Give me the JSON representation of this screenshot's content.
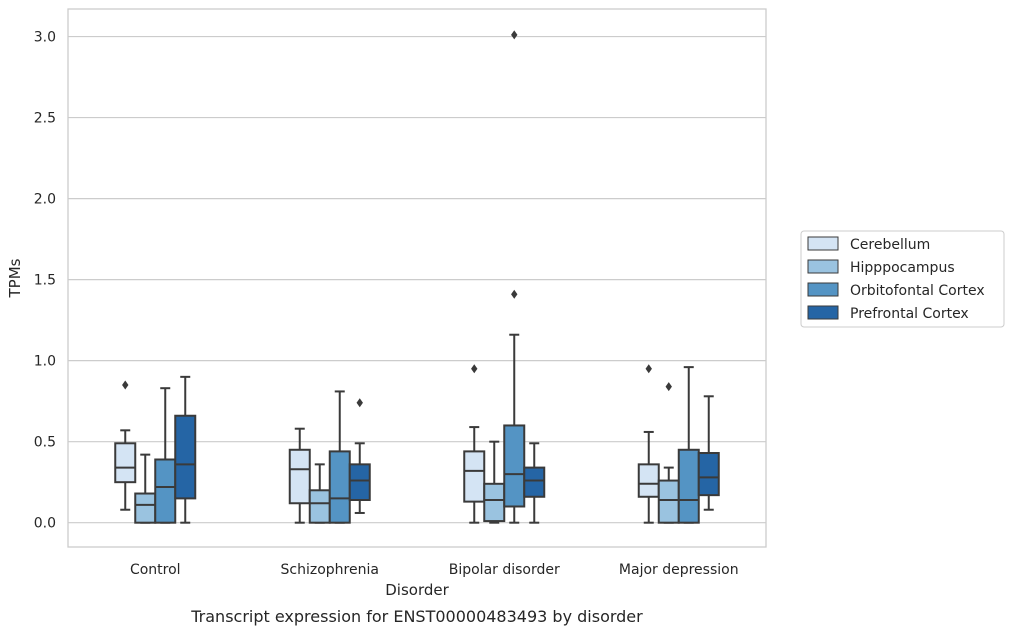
{
  "caption": "Transcript expression for ENST00000483493 by disorder",
  "chart_data": {
    "type": "boxplot",
    "xlabel": "Disorder",
    "ylabel": "TPMs",
    "ylim": [
      -0.15,
      3.17
    ],
    "yticks": [
      "0.0",
      "0.5",
      "1.0",
      "1.5",
      "2.0",
      "2.5",
      "3.0"
    ],
    "grid": "horizontal",
    "legend_position": "right",
    "categories": [
      "Control",
      "Schizophrenia",
      "Bipolar disorder",
      "Major depression"
    ],
    "series": [
      {
        "name": "Cerebellum",
        "color": "#d4e4f4",
        "boxes": [
          {
            "whislo": 0.08,
            "q1": 0.25,
            "med": 0.34,
            "q3": 0.49,
            "whishi": 0.57,
            "fliers": [
              0.85
            ]
          },
          {
            "whislo": 0.0,
            "q1": 0.12,
            "med": 0.33,
            "q3": 0.45,
            "whishi": 0.58,
            "fliers": []
          },
          {
            "whislo": 0.0,
            "q1": 0.13,
            "med": 0.32,
            "q3": 0.44,
            "whishi": 0.59,
            "fliers": [
              0.95
            ]
          },
          {
            "whislo": 0.0,
            "q1": 0.16,
            "med": 0.24,
            "q3": 0.36,
            "whishi": 0.56,
            "fliers": [
              0.95
            ]
          }
        ]
      },
      {
        "name": "Hipppocampus",
        "color": "#9ac3e0",
        "boxes": [
          {
            "whislo": 0.0,
            "q1": 0.0,
            "med": 0.11,
            "q3": 0.18,
            "whishi": 0.42,
            "fliers": []
          },
          {
            "whislo": 0.0,
            "q1": 0.0,
            "med": 0.12,
            "q3": 0.2,
            "whishi": 0.36,
            "fliers": []
          },
          {
            "whislo": 0.0,
            "q1": 0.01,
            "med": 0.14,
            "q3": 0.24,
            "whishi": 0.5,
            "fliers": []
          },
          {
            "whislo": 0.0,
            "q1": 0.0,
            "med": 0.14,
            "q3": 0.26,
            "whishi": 0.34,
            "fliers": [
              0.84
            ]
          }
        ]
      },
      {
        "name": "Orbitofontal Cortex",
        "color": "#5494c4",
        "boxes": [
          {
            "whislo": 0.0,
            "q1": 0.0,
            "med": 0.22,
            "q3": 0.39,
            "whishi": 0.83,
            "fliers": []
          },
          {
            "whislo": 0.0,
            "q1": 0.0,
            "med": 0.15,
            "q3": 0.44,
            "whishi": 0.81,
            "fliers": []
          },
          {
            "whislo": 0.0,
            "q1": 0.1,
            "med": 0.3,
            "q3": 0.6,
            "whishi": 1.16,
            "fliers": [
              1.41,
              3.01
            ]
          },
          {
            "whislo": 0.0,
            "q1": 0.0,
            "med": 0.14,
            "q3": 0.45,
            "whishi": 0.96,
            "fliers": []
          }
        ]
      },
      {
        "name": "Prefrontal Cortex",
        "color": "#2565a5",
        "boxes": [
          {
            "whislo": 0.0,
            "q1": 0.15,
            "med": 0.36,
            "q3": 0.66,
            "whishi": 0.9,
            "fliers": []
          },
          {
            "whislo": 0.06,
            "q1": 0.14,
            "med": 0.26,
            "q3": 0.36,
            "whishi": 0.49,
            "fliers": [
              0.74
            ]
          },
          {
            "whislo": 0.0,
            "q1": 0.16,
            "med": 0.26,
            "q3": 0.34,
            "whishi": 0.49,
            "fliers": []
          },
          {
            "whislo": 0.08,
            "q1": 0.17,
            "med": 0.28,
            "q3": 0.43,
            "whishi": 0.78,
            "fliers": []
          }
        ]
      }
    ]
  }
}
